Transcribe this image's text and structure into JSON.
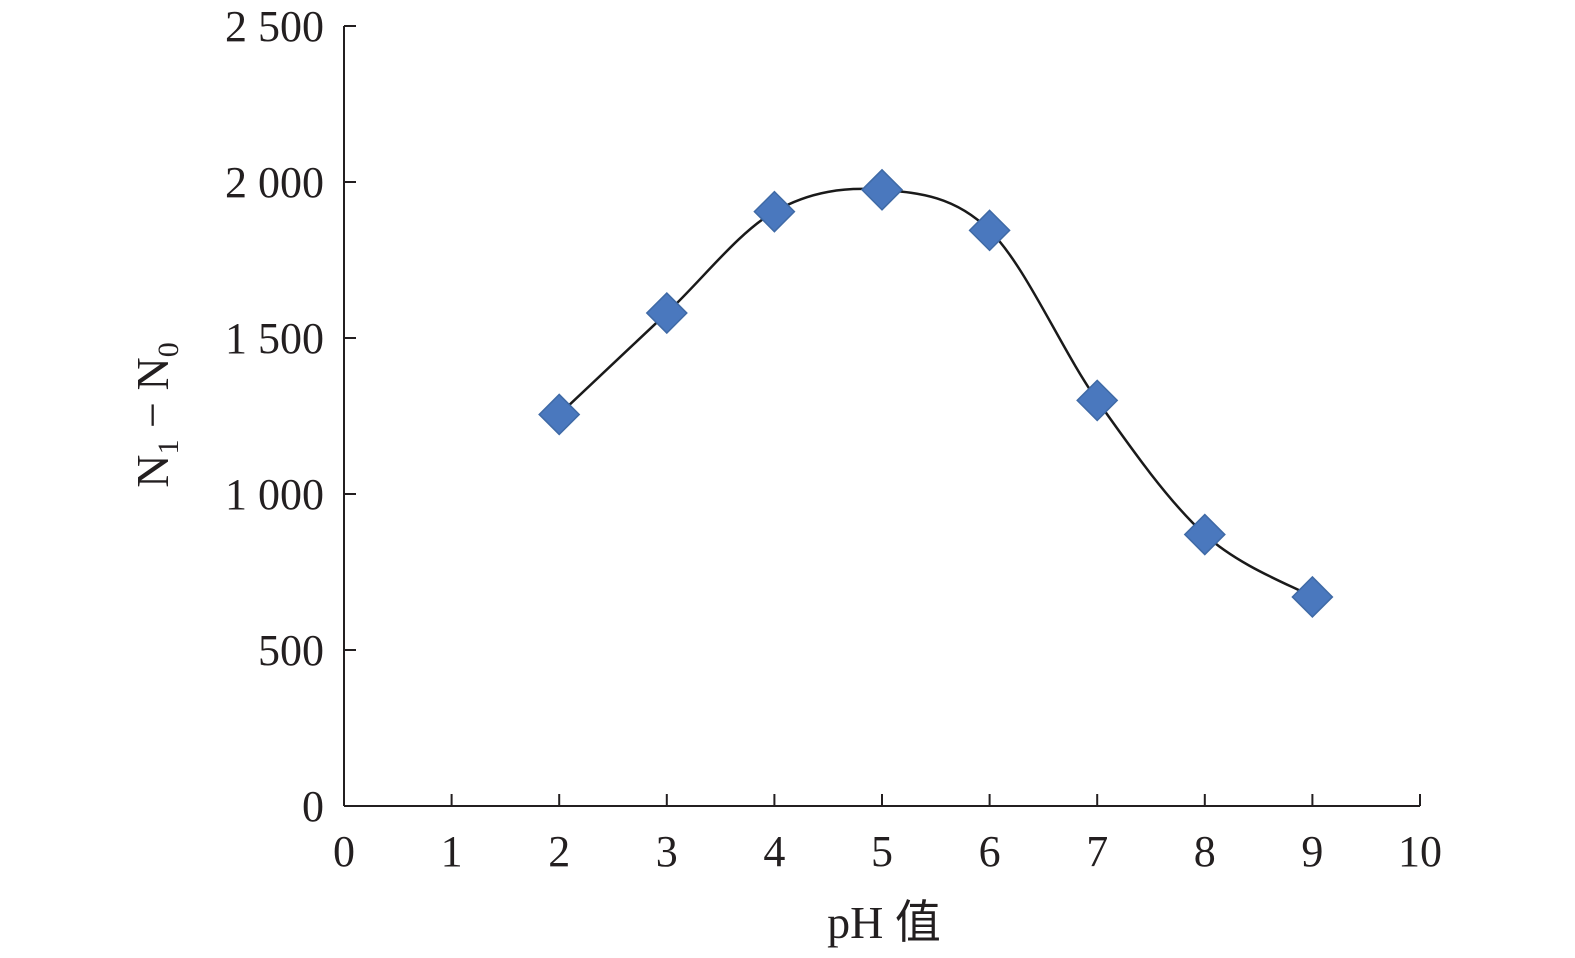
{
  "chart_data": {
    "type": "scatter",
    "xlabel": "pH 值",
    "ylabel": "N1 − N0",
    "ylabel_parts": {
      "first": "N",
      "first_sub": "1",
      "sep": " − ",
      "second": "N",
      "second_sub": "0"
    },
    "xlim": [
      0,
      10
    ],
    "ylim": [
      0,
      2500
    ],
    "x_ticks": [
      0,
      1,
      2,
      3,
      4,
      5,
      6,
      7,
      8,
      9,
      10
    ],
    "x_tick_labels": [
      "0",
      "1",
      "2",
      "3",
      "4",
      "5",
      "6",
      "7",
      "8",
      "9",
      "10"
    ],
    "y_ticks": [
      0,
      500,
      1000,
      1500,
      2000,
      2500
    ],
    "y_tick_labels": [
      "0",
      "500",
      "1 000",
      "1 500",
      "2 000",
      "2 500"
    ],
    "grid": false,
    "series": [
      {
        "marker": "diamond",
        "marker_color": "#4a78be",
        "line": "smooth",
        "line_color": "#1a1a1a",
        "x": [
          2,
          3,
          4,
          5,
          6,
          7,
          8,
          9
        ],
        "y": [
          1255,
          1580,
          1905,
          1975,
          1845,
          1300,
          870,
          670
        ]
      }
    ]
  }
}
